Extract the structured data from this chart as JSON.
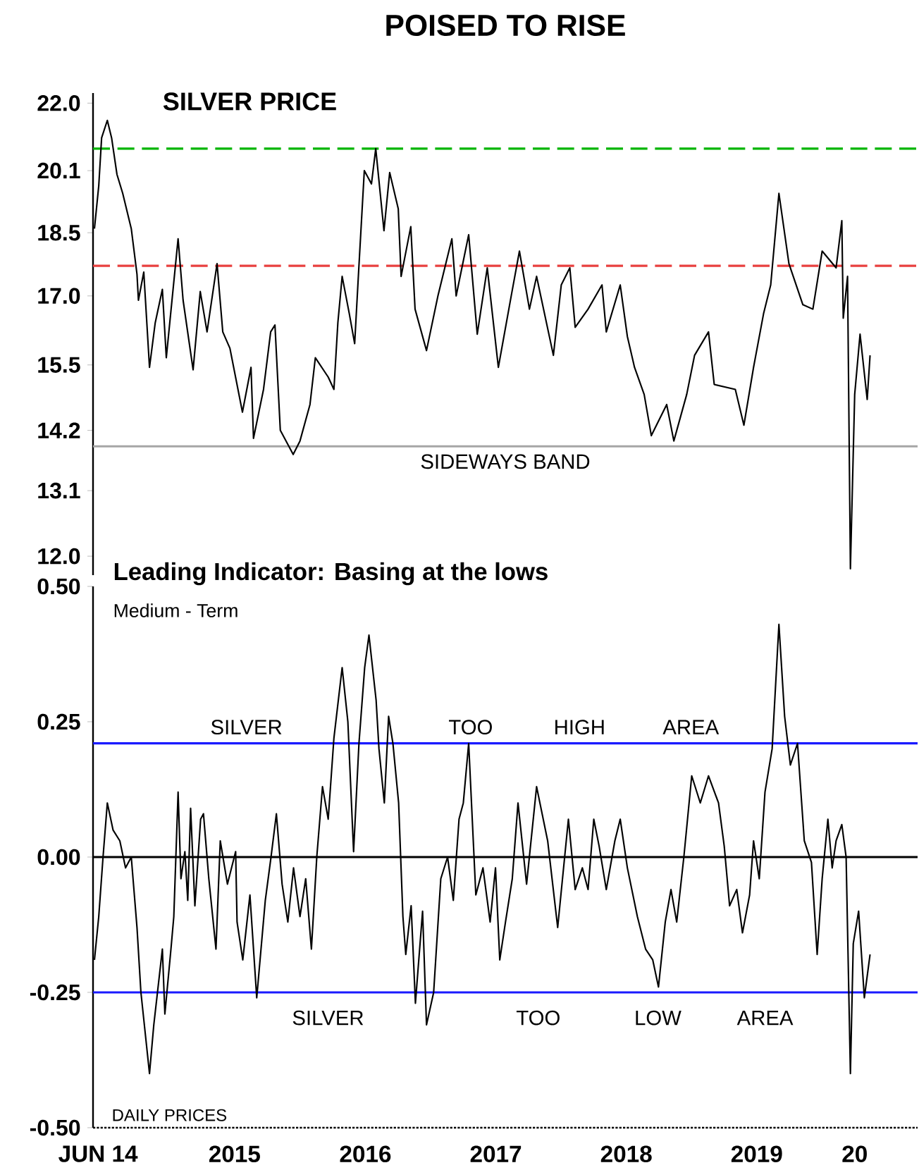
{
  "chart_data": [
    {
      "type": "line",
      "title": "POISED TO RISE",
      "subtitle": "SILVER PRICE",
      "x": [
        "2014-06-05",
        "2014-06-17",
        "2014-06-25",
        "2014-07-11",
        "2014-07-23",
        "2014-08-07",
        "2014-08-23",
        "2014-09-16",
        "2014-10-02",
        "2014-10-06",
        "2014-10-21",
        "2014-11-06",
        "2014-11-22",
        "2014-12-12",
        "2014-12-23",
        "2015-01-25",
        "2015-02-08",
        "2015-03-08",
        "2015-03-28",
        "2015-04-16",
        "2015-05-14",
        "2015-05-30",
        "2015-06-19",
        "2015-07-24",
        "2015-08-17",
        "2015-08-24",
        "2015-09-21",
        "2015-10-11",
        "2015-10-23",
        "2015-11-07",
        "2015-12-13",
        "2016-01-01",
        "2016-01-29",
        "2016-02-13",
        "2016-03-20",
        "2016-04-05",
        "2016-04-16",
        "2016-04-28",
        "2016-05-18",
        "2016-06-02",
        "2016-06-13",
        "2016-06-29",
        "2016-07-19",
        "2016-07-31",
        "2016-08-23",
        "2016-09-08",
        "2016-10-02",
        "2016-10-10",
        "2016-11-06",
        "2016-11-18",
        "2016-12-20",
        "2017-01-21",
        "2017-03-01",
        "2017-03-13",
        "2017-04-17",
        "2017-05-11",
        "2017-06-08",
        "2017-07-09",
        "2017-08-14",
        "2017-09-06",
        "2017-10-04",
        "2017-10-24",
        "2017-12-10",
        "2018-01-01",
        "2018-01-25",
        "2018-02-09",
        "2018-03-17",
        "2018-04-25",
        "2018-05-07",
        "2018-06-15",
        "2018-07-05",
        "2018-07-25",
        "2018-08-21",
        "2018-09-10",
        "2018-10-23",
        "2018-11-12",
        "2018-12-18",
        "2019-01-09",
        "2019-02-17",
        "2019-03-05",
        "2019-05-03",
        "2019-05-27",
        "2019-06-23",
        "2019-07-21",
        "2019-08-10",
        "2019-09-02",
        "2019-09-30",
        "2019-11-08",
        "2019-12-06",
        "2020-01-01",
        "2020-02-09",
        "2020-02-25",
        "2020-02-29",
        "2020-03-12",
        "2020-03-20",
        "2020-04-01",
        "2020-04-16",
        "2020-05-06",
        "2020-05-14"
      ],
      "series": [
        {
          "color": "#000000",
          "values": [
            18.6,
            19.7,
            21.0,
            21.5,
            21.0,
            20.0,
            19.5,
            18.6,
            17.5,
            16.9,
            17.55,
            15.45,
            16.4,
            17.15,
            15.65,
            18.35,
            16.9,
            15.4,
            17.1,
            16.2,
            17.75,
            16.2,
            15.85,
            14.55,
            15.45,
            14.05,
            15.0,
            16.2,
            16.35,
            14.2,
            13.75,
            14.0,
            14.7,
            15.65,
            15.25,
            15.0,
            16.4,
            17.45,
            16.6,
            15.95,
            17.55,
            20.1,
            19.75,
            20.7,
            18.55,
            20.05,
            19.1,
            17.45,
            18.65,
            16.7,
            15.8,
            17.0,
            18.35,
            17.0,
            18.45,
            16.15,
            17.65,
            15.45,
            17.0,
            18.05,
            16.7,
            17.45,
            15.7,
            17.25,
            17.65,
            16.3,
            16.7,
            17.25,
            16.2,
            17.25,
            16.1,
            15.45,
            14.9,
            14.1,
            14.7,
            14.0,
            14.9,
            15.7,
            16.2,
            15.1,
            15.0,
            14.3,
            15.45,
            16.6,
            17.25,
            19.5,
            17.75,
            16.8,
            16.7,
            18.05,
            17.65,
            18.8,
            16.5,
            17.45,
            11.8,
            14.9,
            16.15,
            14.8,
            15.7
          ]
        }
      ],
      "xlim": [
        "2014-06-01",
        "2020-09-24"
      ],
      "ylim": [
        11.7,
        22.3
      ],
      "log": "y",
      "yticks": [
        {
          "value": 12,
          "label": "12.0"
        },
        {
          "value": 13.1,
          "label": "13.1"
        },
        {
          "value": 14.2,
          "label": "14.2"
        },
        {
          "value": 15.5,
          "label": "15.5"
        },
        {
          "value": 17,
          "label": "17.0"
        },
        {
          "value": 18.5,
          "label": "18.5"
        },
        {
          "value": 20.1,
          "label": "20.1"
        },
        {
          "value": 22,
          "label": "22.0"
        }
      ],
      "tick_labels": "y",
      "ref_lines": [
        {
          "axis": "y",
          "value": 20.7,
          "color": "#00b400",
          "line_style": "dashed"
        },
        {
          "axis": "y",
          "value": 17.7,
          "color": "#e8403f",
          "line_style": "dashed"
        },
        {
          "axis": "y",
          "value": 13.9,
          "color": "#a6a6a6",
          "line_style": "solid",
          "label": "SIDEWAYS BAND"
        }
      ]
    },
    {
      "type": "line",
      "title": "Leading Indicator: Basing at the lows",
      "subtitle": "Medium - Term",
      "x": [
        "2014-06-05",
        "2014-06-17",
        "2014-06-29",
        "2014-07-11",
        "2014-07-27",
        "2014-08-15",
        "2014-08-31",
        "2014-09-16",
        "2014-10-02",
        "2014-10-13",
        "2014-11-06",
        "2014-11-18",
        "2014-12-12",
        "2014-12-19",
        "2015-01-05",
        "2015-01-13",
        "2015-01-25",
        "2015-02-02",
        "2015-02-13",
        "2015-02-21",
        "2015-03-01",
        "2015-03-13",
        "2015-03-29",
        "2015-04-06",
        "2015-04-21",
        "2015-05-11",
        "2015-05-23",
        "2015-06-12",
        "2015-07-05",
        "2015-07-09",
        "2015-07-25",
        "2015-08-14",
        "2015-09-02",
        "2015-09-26",
        "2015-10-12",
        "2015-10-27",
        "2015-11-12",
        "2015-11-28",
        "2015-12-14",
        "2016-01-01",
        "2016-01-17",
        "2016-02-02",
        "2016-02-17",
        "2016-03-04",
        "2016-03-20",
        "2016-04-05",
        "2016-04-28",
        "2016-05-14",
        "2016-05-30",
        "2016-06-14",
        "2016-06-30",
        "2016-07-12",
        "2016-08-01",
        "2016-08-09",
        "2016-08-24",
        "2016-09-05",
        "2016-09-17",
        "2016-10-03",
        "2016-10-15",
        "2016-10-23",
        "2016-11-07",
        "2016-11-19",
        "2016-12-09",
        "2016-12-20",
        "2017-01-09",
        "2017-01-29",
        "2017-02-17",
        "2017-03-05",
        "2017-03-21",
        "2017-04-02",
        "2017-04-17",
        "2017-05-07",
        "2017-05-27",
        "2017-06-16",
        "2017-07-01",
        "2017-07-13",
        "2017-07-29",
        "2017-08-17",
        "2017-09-02",
        "2017-09-26",
        "2017-10-24",
        "2017-11-24",
        "2017-12-22",
        "2018-01-21",
        "2018-02-09",
        "2018-03-01",
        "2018-03-17",
        "2018-04-02",
        "2018-04-17",
        "2018-05-07",
        "2018-05-31",
        "2018-06-15",
        "2018-07-05",
        "2018-08-02",
        "2018-08-25",
        "2018-09-14",
        "2018-09-30",
        "2018-10-19",
        "2018-11-04",
        "2018-11-20",
        "2018-12-10",
        "2019-01-01",
        "2019-01-25",
        "2019-02-17",
        "2019-03-17",
        "2019-04-02",
        "2019-04-17",
        "2019-05-07",
        "2019-05-23",
        "2019-06-12",
        "2019-06-23",
        "2019-07-09",
        "2019-07-25",
        "2019-08-14",
        "2019-09-02",
        "2019-09-18",
        "2019-10-04",
        "2019-10-24",
        "2019-11-12",
        "2019-12-02",
        "2019-12-18",
        "2020-01-01",
        "2020-01-17",
        "2020-01-29",
        "2020-02-09",
        "2020-02-25",
        "2020-03-08",
        "2020-03-20",
        "2020-03-28",
        "2020-04-12",
        "2020-04-28",
        "2020-05-14"
      ],
      "series": [
        {
          "color": "#000000",
          "values": [
            -0.19,
            -0.11,
            0.0,
            0.1,
            0.05,
            0.03,
            -0.02,
            0.0,
            -0.13,
            -0.25,
            -0.4,
            -0.31,
            -0.17,
            -0.29,
            -0.17,
            -0.11,
            0.12,
            -0.04,
            0.01,
            -0.08,
            0.09,
            -0.09,
            0.07,
            0.08,
            -0.04,
            -0.17,
            0.03,
            -0.05,
            0.01,
            -0.12,
            -0.19,
            -0.07,
            -0.26,
            -0.08,
            0.0,
            0.08,
            -0.05,
            -0.12,
            -0.02,
            -0.11,
            -0.04,
            -0.17,
            0.0,
            0.13,
            0.07,
            0.22,
            0.35,
            0.25,
            0.01,
            0.21,
            0.35,
            0.41,
            0.29,
            0.2,
            0.1,
            0.26,
            0.21,
            0.1,
            -0.11,
            -0.18,
            -0.09,
            -0.27,
            -0.1,
            -0.31,
            -0.25,
            -0.04,
            0.0,
            -0.08,
            0.07,
            0.1,
            0.21,
            -0.07,
            -0.02,
            -0.12,
            -0.02,
            -0.19,
            -0.12,
            -0.04,
            0.1,
            -0.05,
            0.13,
            0.03,
            -0.13,
            0.07,
            -0.06,
            -0.02,
            -0.06,
            0.07,
            0.02,
            -0.06,
            0.03,
            0.07,
            -0.02,
            -0.11,
            -0.17,
            -0.19,
            -0.24,
            -0.12,
            -0.06,
            -0.12,
            0.0,
            0.15,
            0.1,
            0.15,
            0.1,
            0.02,
            -0.09,
            -0.06,
            -0.14,
            -0.07,
            0.03,
            -0.04,
            0.12,
            0.2,
            0.43,
            0.26,
            0.17,
            0.21,
            0.03,
            -0.01,
            -0.18,
            -0.04,
            0.07,
            -0.02,
            0.03,
            0.06,
            0.0,
            -0.4,
            -0.16,
            -0.1,
            -0.26,
            -0.18
          ]
        }
      ],
      "xlim": [
        "2014-06-01",
        "2020-09-24"
      ],
      "ylim": [
        -0.5,
        0.5
      ],
      "xticks": [
        {
          "value": "2014-06-15",
          "label": "JUN 14"
        },
        {
          "value": "2015-07-02",
          "label": "2015"
        },
        {
          "value": "2016-07-02",
          "label": "2016"
        },
        {
          "value": "2017-07-02",
          "label": "2017"
        },
        {
          "value": "2018-07-02",
          "label": "2018"
        },
        {
          "value": "2019-07-02",
          "label": "2019"
        },
        {
          "value": "2020-04-01",
          "label": "20"
        }
      ],
      "yticks": [
        {
          "value": -0.5,
          "label": "-0.50"
        },
        {
          "value": -0.25,
          "label": "-0.25"
        },
        {
          "value": 0,
          "label": "0.00"
        },
        {
          "value": 0.25,
          "label": "0.25"
        },
        {
          "value": 0.5,
          "label": "0.50"
        }
      ],
      "ref_lines": [
        {
          "axis": "y",
          "value": 0.21,
          "color": "#1a1aff",
          "line_style": "solid"
        },
        {
          "axis": "y",
          "value": 0,
          "color": "#000000",
          "line_style": "solid"
        },
        {
          "axis": "y",
          "value": -0.25,
          "color": "#1a1aff",
          "line_style": "solid"
        }
      ],
      "annotations": [
        "DAILY PRICES",
        "SILVER",
        "TOO",
        "HIGH",
        "AREA",
        "SILVER",
        "TOO",
        "LOW",
        "AREA"
      ]
    }
  ]
}
